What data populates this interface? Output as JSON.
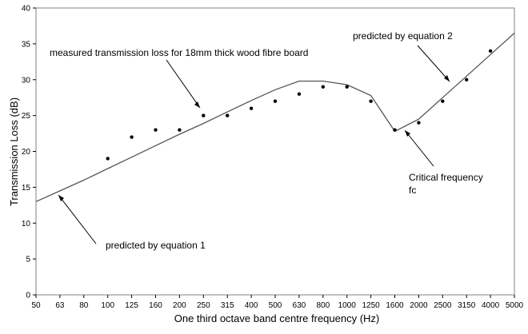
{
  "chart_data": {
    "type": "line",
    "title": "",
    "xlabel": "One third octave band centre frequency (Hz)",
    "ylabel": "Transmission Loss (dB)",
    "ylim": [
      0,
      40
    ],
    "y_ticks": [
      0,
      5,
      10,
      15,
      20,
      25,
      30,
      35,
      40
    ],
    "grid": false,
    "legend": "none",
    "categories": [
      "50",
      "63",
      "80",
      "100",
      "125",
      "160",
      "200",
      "250",
      "315",
      "400",
      "500",
      "630",
      "800",
      "1000",
      "1250",
      "1600",
      "2000",
      "2500",
      "3150",
      "4000",
      "5000"
    ],
    "series": [
      {
        "style": "line",
        "color": "#555555",
        "values": [
          13.0,
          14.5,
          16.0,
          17.6,
          19.2,
          20.8,
          22.4,
          23.9,
          25.5,
          27.1,
          28.6,
          29.8,
          29.8,
          29.3,
          27.8,
          22.8,
          24.5,
          27.5,
          30.5,
          33.5,
          36.5
        ]
      },
      {
        "style": "scatter",
        "color": "#000000",
        "values": [
          null,
          null,
          null,
          19,
          22,
          23,
          23,
          25,
          25,
          26,
          27,
          28,
          29,
          29,
          27,
          23,
          24,
          27,
          30,
          34,
          null
        ]
      }
    ],
    "annotations": [
      {
        "text": "measured transmission loss for 18mm thick wood fibre board",
        "target": "250"
      },
      {
        "text": "predicted by equation 2",
        "target": "2500"
      },
      {
        "text": "Critical frequency",
        "target": "1600"
      },
      {
        "text": "fc",
        "target": "1600"
      },
      {
        "text": "predicted by equation 1",
        "target": "63"
      }
    ]
  }
}
